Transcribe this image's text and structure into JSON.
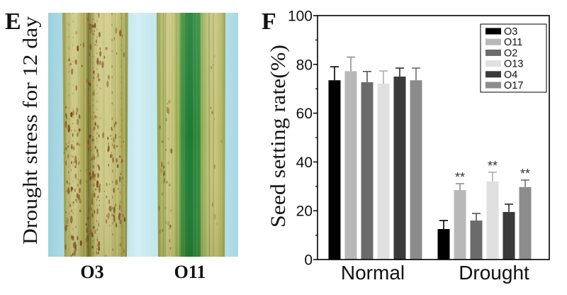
{
  "panel_e": {
    "label": "E",
    "side_label": "Drought stress for 12 day",
    "leaves": [
      {
        "label": "O3"
      },
      {
        "label": "O11"
      }
    ]
  },
  "panel_f": {
    "label": "F"
  },
  "chart_data": {
    "type": "bar",
    "categories": [
      "Normal",
      "Drought"
    ],
    "ylabel": "Seed setting rate(%)",
    "ylim": [
      0,
      100
    ],
    "yticks": [
      0,
      20,
      40,
      60,
      80,
      100
    ],
    "grid": false,
    "legend": "top-right",
    "series": [
      {
        "name": "O3",
        "color": "#000000",
        "values": [
          73.5,
          12.5
        ],
        "errors": [
          5.5,
          3.5
        ],
        "marks": [
          null,
          null
        ]
      },
      {
        "name": "O11",
        "color": "#b8b8b8",
        "values": [
          77.2,
          28.5
        ],
        "errors": [
          5.8,
          2.6
        ],
        "marks": [
          null,
          "**"
        ]
      },
      {
        "name": "O2",
        "color": "#6b6b6b",
        "values": [
          72.7,
          16.0
        ],
        "errors": [
          4.4,
          2.9
        ],
        "marks": [
          null,
          null
        ]
      },
      {
        "name": "O13",
        "color": "#e0e0e0",
        "values": [
          72.1,
          32.0
        ],
        "errors": [
          5.2,
          3.8
        ],
        "marks": [
          null,
          "**"
        ]
      },
      {
        "name": "O4",
        "color": "#3a3a3a",
        "values": [
          75.0,
          19.5
        ],
        "errors": [
          3.5,
          3.2
        ],
        "marks": [
          null,
          null
        ]
      },
      {
        "name": "O17",
        "color": "#8c8c8c",
        "values": [
          73.5,
          29.7
        ],
        "errors": [
          5.0,
          2.9
        ],
        "marks": [
          null,
          "**"
        ]
      }
    ]
  }
}
